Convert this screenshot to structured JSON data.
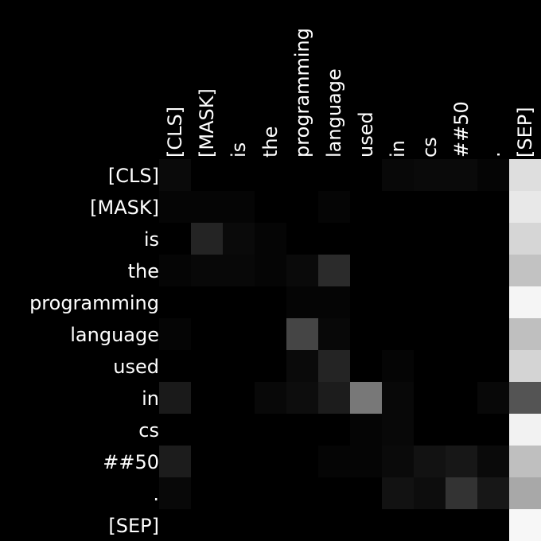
{
  "chart_data": {
    "type": "heatmap",
    "colormap": "grayscale",
    "x_labels": [
      "[CLS]",
      "[MASK]",
      "is",
      "the",
      "programming",
      "language",
      "used",
      "in",
      "cs",
      "##50",
      ".",
      "[SEP]"
    ],
    "y_labels": [
      "[CLS]",
      "[MASK]",
      "is",
      "the",
      "programming",
      "language",
      "used",
      "in",
      "cs",
      "##50",
      ".",
      "[SEP]"
    ],
    "vmin": 0,
    "vmax": 1,
    "matrix": [
      [
        0.04,
        0.0,
        0.0,
        0.0,
        0.0,
        0.0,
        0.0,
        0.03,
        0.04,
        0.04,
        0.02,
        0.87
      ],
      [
        0.02,
        0.02,
        0.02,
        0.0,
        0.0,
        0.02,
        0.0,
        0.0,
        0.0,
        0.0,
        0.0,
        0.91
      ],
      [
        0.0,
        0.14,
        0.04,
        0.02,
        0.0,
        0.0,
        0.0,
        0.0,
        0.0,
        0.0,
        0.0,
        0.84
      ],
      [
        0.02,
        0.03,
        0.03,
        0.02,
        0.04,
        0.17,
        0.0,
        0.0,
        0.0,
        0.0,
        0.0,
        0.76
      ],
      [
        0.0,
        0.0,
        0.0,
        0.0,
        0.02,
        0.02,
        0.0,
        0.0,
        0.0,
        0.0,
        0.0,
        0.96
      ],
      [
        0.02,
        0.0,
        0.0,
        0.0,
        0.27,
        0.03,
        0.0,
        0.0,
        0.0,
        0.0,
        0.0,
        0.75
      ],
      [
        0.0,
        0.0,
        0.0,
        0.0,
        0.04,
        0.14,
        0.0,
        0.02,
        0.0,
        0.0,
        0.0,
        0.83
      ],
      [
        0.1,
        0.0,
        0.0,
        0.03,
        0.05,
        0.11,
        0.47,
        0.03,
        0.0,
        0.0,
        0.03,
        0.33
      ],
      [
        0.0,
        0.0,
        0.0,
        0.0,
        0.0,
        0.0,
        0.02,
        0.03,
        0.0,
        0.0,
        0.0,
        0.95
      ],
      [
        0.11,
        0.0,
        0.0,
        0.0,
        0.0,
        0.02,
        0.02,
        0.04,
        0.07,
        0.09,
        0.04,
        0.75
      ],
      [
        0.03,
        0.0,
        0.0,
        0.0,
        0.0,
        0.0,
        0.0,
        0.07,
        0.05,
        0.2,
        0.09,
        0.66
      ],
      [
        0.0,
        0.0,
        0.0,
        0.0,
        0.0,
        0.0,
        0.0,
        0.0,
        0.0,
        0.0,
        0.0,
        0.97
      ]
    ]
  }
}
